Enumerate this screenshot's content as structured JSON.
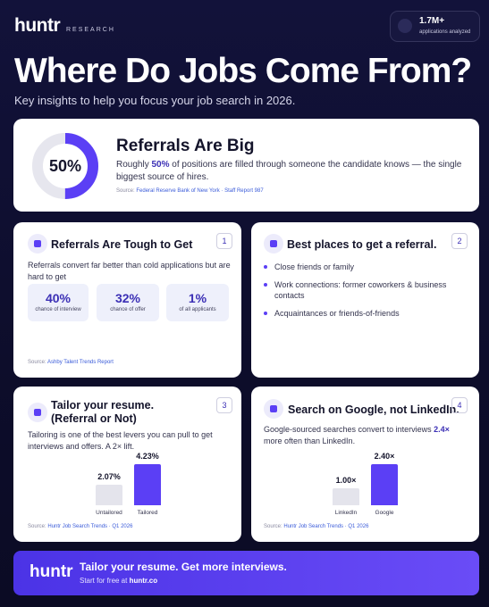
{
  "header": {
    "logo": "huntr",
    "logo_sub": "RESEARCH",
    "stat_value": "1.7M+",
    "stat_label": "applications analyzed"
  },
  "title": "Where Do Jobs Come From?",
  "subtitle": "Key insights to help you focus your job search in 2026.",
  "hero": {
    "value": 50,
    "value_label": "50%",
    "heading": "Referrals Are Big",
    "text_before": "Roughly ",
    "text_bold": "50%",
    "text_after": " of positions are filled through someone the candidate knows — the single biggest source of hires.",
    "source_prefix": "Source: ",
    "source": "Federal Reserve Bank of New York · Staff Report 987"
  },
  "cards": [
    {
      "number": "1",
      "heading": "Referrals Are Tough to Get",
      "text": "Referrals convert far better than cold applications but are hard to get",
      "stats": [
        {
          "value": "40%",
          "label": "chance of interview"
        },
        {
          "value": "32%",
          "label": "chance of offer"
        },
        {
          "value": "1%",
          "label": "of all applicants"
        }
      ],
      "source_prefix": "Source: ",
      "source": "Ashby Talent Trends Report"
    },
    {
      "number": "2",
      "heading": "Best places to get a referral.",
      "bullets": [
        "Close friends or family",
        "Work connections:  former coworkers & business contacts",
        "Acquaintances or friends-of-friends"
      ]
    },
    {
      "number": "3",
      "heading": [
        "Tailor your resume.",
        "(Referral or Not)"
      ],
      "text": "Tailoring is one of the best levers you can pull to get interviews and offers. A 2× lift.",
      "bars": {
        "categories": [
          "Untailored",
          "Tailored"
        ],
        "values": [
          2.07,
          4.23
        ],
        "value_labels": [
          "2.07%",
          "4.23%"
        ],
        "colors": [
          "#e4e4ec",
          "#5b3ff5"
        ]
      },
      "source_prefix": "Source: ",
      "source": "Huntr Job Search Trends · Q1 2026"
    },
    {
      "number": "4",
      "heading": "Search on Google, not LinkedIn.",
      "text_before": "Google-sourced searches convert to interviews ",
      "text_bold": "2.4×",
      "text_after": " more often than LinkedIn.",
      "bars": {
        "categories": [
          "LinkedIn",
          "Google"
        ],
        "values": [
          1.0,
          2.4
        ],
        "value_labels": [
          "1.00×",
          "2.40×"
        ],
        "colors": [
          "#e4e4ec",
          "#5b3ff5"
        ]
      },
      "source_prefix": "Source: ",
      "source": "Huntr Job Search Trends · Q1 2026"
    }
  ],
  "banner": {
    "logo": "huntr",
    "heading": "Tailor your resume. Get more interviews.",
    "text_before": "Start for free at ",
    "text_bold": "huntr.co"
  }
}
